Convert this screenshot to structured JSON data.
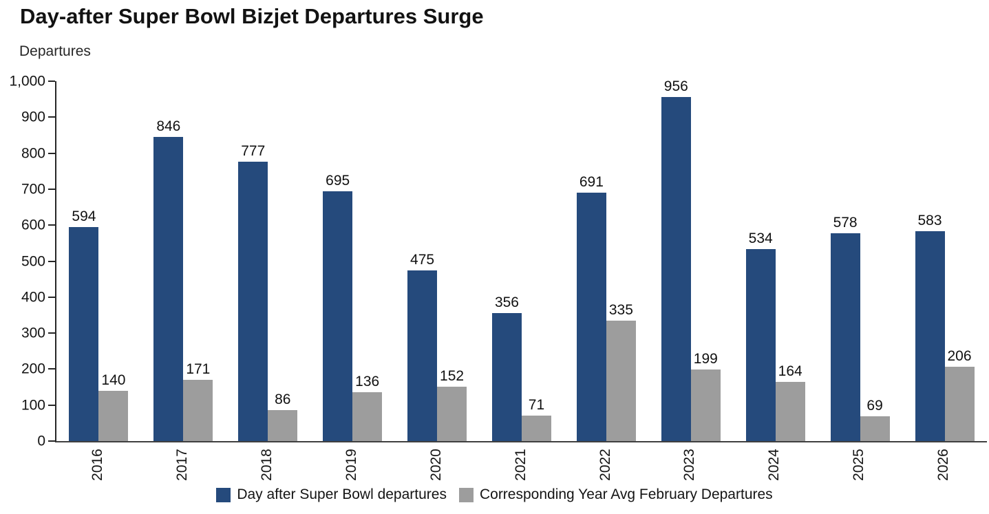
{
  "chart_data": {
    "type": "bar",
    "title": "Day-after Super Bowl Bizjet Departures Surge",
    "ylabel": "Departures",
    "xlabel": "",
    "ylim": [
      0,
      1000
    ],
    "grid": false,
    "legend_position": "bottom",
    "categories": [
      "2016",
      "2017",
      "2018",
      "2019",
      "2020",
      "2021",
      "2022",
      "2023",
      "2024",
      "2025",
      "2026"
    ],
    "series": [
      {
        "name": "Day after Super Bowl departures",
        "color": "#254A7C",
        "values": [
          594,
          846,
          777,
          695,
          475,
          356,
          691,
          956,
          534,
          578,
          583
        ]
      },
      {
        "name": "Corresponding Year Avg February Departures",
        "color": "#9D9D9D",
        "values": [
          140,
          171,
          86,
          136,
          152,
          71,
          335,
          199,
          164,
          69,
          206
        ]
      }
    ],
    "yticks": [
      {
        "value": 0,
        "label": "0"
      },
      {
        "value": 100,
        "label": "100"
      },
      {
        "value": 200,
        "label": "200"
      },
      {
        "value": 300,
        "label": "300"
      },
      {
        "value": 400,
        "label": "400"
      },
      {
        "value": 500,
        "label": "500"
      },
      {
        "value": 600,
        "label": "600"
      },
      {
        "value": 700,
        "label": "700"
      },
      {
        "value": 800,
        "label": "800"
      },
      {
        "value": 900,
        "label": "900"
      },
      {
        "value": 1000,
        "label": "1,000"
      }
    ],
    "axis_color": "#3f3f3f",
    "text_color": "#141414"
  }
}
